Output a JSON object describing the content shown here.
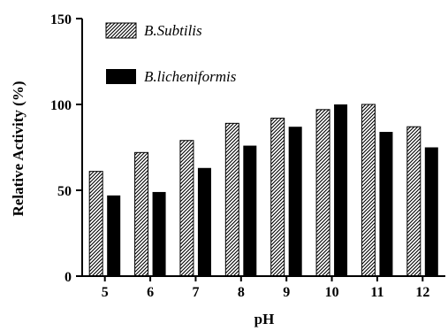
{
  "chart_data": {
    "type": "bar",
    "title": "",
    "xlabel": "pH",
    "ylabel": "Relative Activity (%)",
    "categories": [
      "5",
      "6",
      "7",
      "8",
      "9",
      "10",
      "11",
      "12"
    ],
    "ylim": [
      0,
      150
    ],
    "yticks": [
      "0",
      "50",
      "100",
      "150"
    ],
    "grid": false,
    "legend_position": "top-left",
    "series": [
      {
        "name": "B.Subtilis",
        "pattern": "diagonal-hatch",
        "values": [
          61,
          72,
          79,
          89,
          92,
          97,
          100,
          87
        ]
      },
      {
        "name": "B.licheniformis",
        "pattern": "solid-black",
        "values": [
          47,
          49,
          63,
          76,
          87,
          100,
          84,
          75
        ]
      }
    ]
  }
}
